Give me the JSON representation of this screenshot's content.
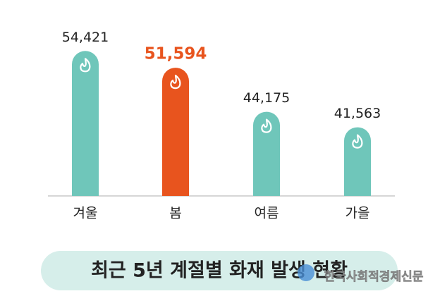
{
  "chart_data": {
    "type": "bar",
    "title": "최근 5년 계절별 화재 발생 현황",
    "watermark": "한국사회적경제신문",
    "categories": [
      "겨울",
      "봄",
      "여름",
      "가을"
    ],
    "values": [
      54421,
      51594,
      44175,
      41563
    ],
    "value_labels": [
      "54,421",
      "51,594",
      "44,175",
      "41,563"
    ],
    "colors": [
      "#6fc6ba",
      "#e8541e",
      "#6fc6ba",
      "#6fc6ba"
    ],
    "label_colors": [
      "#222222",
      "#e8541e",
      "#222222",
      "#222222"
    ],
    "ylim": [
      30000,
      56000
    ]
  }
}
